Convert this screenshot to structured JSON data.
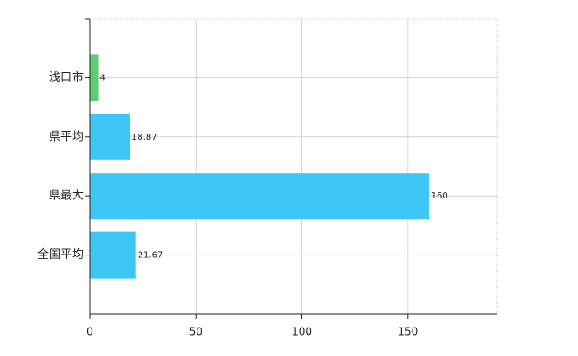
{
  "chart_data": {
    "type": "hbar",
    "categories": [
      "浅口市",
      "県平均",
      "県最大",
      "全国平均"
    ],
    "values": [
      4,
      18.87,
      160,
      21.67
    ],
    "colors": [
      "#5ccc74",
      "#3ec6f7",
      "#3ec6f7",
      "#3ec6f7"
    ],
    "xlim": [
      0,
      192
    ],
    "xticks": [
      0,
      50,
      100,
      150
    ],
    "grid": true
  }
}
